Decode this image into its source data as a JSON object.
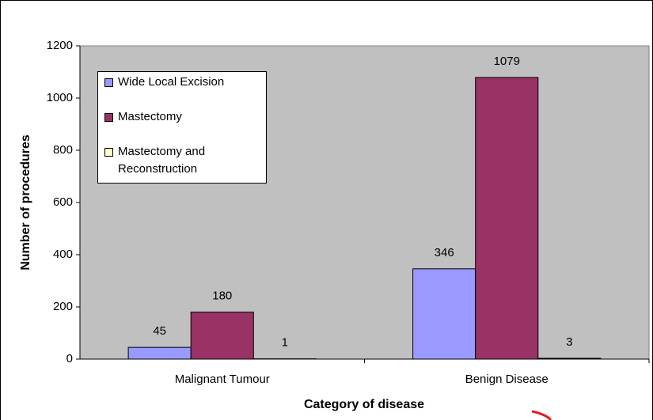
{
  "chart_data": {
    "type": "bar",
    "x_label": "Category of disease",
    "y_label": "Number of procedures",
    "categories": [
      "Malignant Tumour",
      "Benign Disease"
    ],
    "series": [
      {
        "name": "Wide Local Excision",
        "color": "#9999ff",
        "values": [
          45,
          346
        ]
      },
      {
        "name": "Mastectomy",
        "color": "#993366",
        "values": [
          180,
          1079
        ]
      },
      {
        "name": "Mastectomy and Reconstruction",
        "color": "#ffffcc",
        "values": [
          1,
          3
        ]
      }
    ],
    "ylim": [
      0,
      1200
    ],
    "yticks": [
      0,
      200,
      400,
      600,
      800,
      1000,
      1200
    ],
    "grid": false,
    "legend": "upper left",
    "plot_background": "#c0c0c0"
  }
}
